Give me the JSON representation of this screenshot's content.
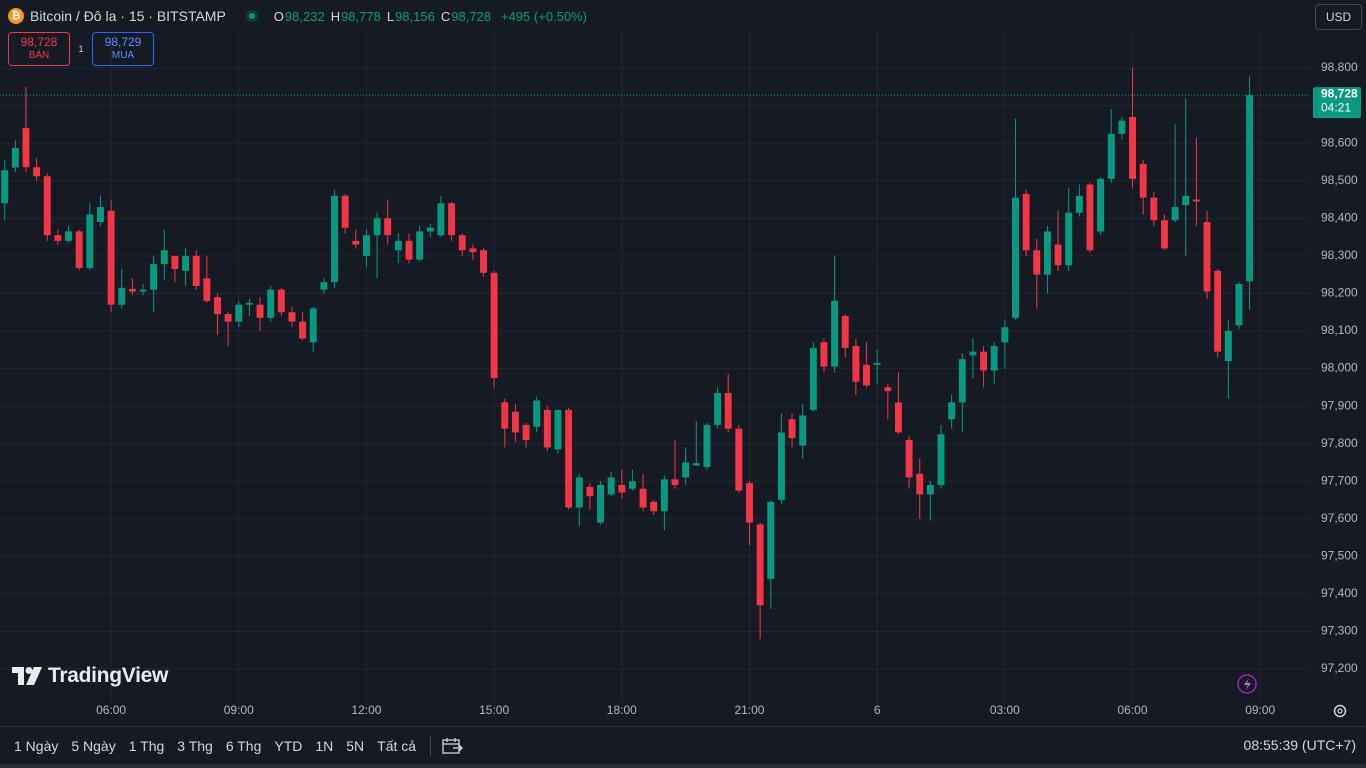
{
  "header": {
    "symbol": "Bitcoin / Đô la · 15 · BITSTAMP",
    "ohlc": [
      {
        "key": "O",
        "value": "98,232"
      },
      {
        "key": "H",
        "value": "98,778"
      },
      {
        "key": "L",
        "value": "98,156"
      },
      {
        "key": "C",
        "value": "98,728"
      }
    ],
    "change": "+495 (+0.50%)",
    "currency": "USD"
  },
  "trade": {
    "sell_price": "98,728",
    "sell_label": "BÁN",
    "spread": "1",
    "buy_price": "98,729",
    "buy_label": "MUA"
  },
  "chart_data": {
    "type": "candlestick",
    "up_color": "#089981",
    "down_color": "#f23645",
    "grid": true,
    "xlim": [
      3.39,
      34.17
    ],
    "ylim": [
      97051,
      98896
    ],
    "xticks": [
      {
        "value": 6,
        "label": "06:00"
      },
      {
        "value": 9,
        "label": "09:00"
      },
      {
        "value": 12,
        "label": "12:00"
      },
      {
        "value": 15,
        "label": "15:00"
      },
      {
        "value": 18,
        "label": "18:00"
      },
      {
        "value": 21,
        "label": "21:00"
      },
      {
        "value": 24,
        "label": "6"
      },
      {
        "value": 27,
        "label": "03:00"
      },
      {
        "value": 30,
        "label": "06:00"
      },
      {
        "value": 33,
        "label": "09:00"
      }
    ],
    "yticks": [
      {
        "value": 97200,
        "label": "97,200"
      },
      {
        "value": 97300,
        "label": "97,300"
      },
      {
        "value": 97400,
        "label": "97,400"
      },
      {
        "value": 97500,
        "label": "97,500"
      },
      {
        "value": 97600,
        "label": "97,600"
      },
      {
        "value": 97700,
        "label": "97,700"
      },
      {
        "value": 97800,
        "label": "97,800"
      },
      {
        "value": 97900,
        "label": "97,900"
      },
      {
        "value": 98000,
        "label": "98,000"
      },
      {
        "value": 98100,
        "label": "98,100"
      },
      {
        "value": 98200,
        "label": "98,200"
      },
      {
        "value": 98300,
        "label": "98,300"
      },
      {
        "value": 98400,
        "label": "98,400"
      },
      {
        "value": 98500,
        "label": "98,500"
      },
      {
        "value": 98600,
        "label": "98,600"
      },
      {
        "value": 98700,
        "label": "98,700"
      },
      {
        "value": 98800,
        "label": "98,800"
      }
    ],
    "x": [
      3.5,
      3.75,
      4,
      4.25,
      4.5,
      4.75,
      5,
      5.25,
      5.5,
      5.75,
      6,
      6.25,
      6.5,
      6.75,
      7,
      7.25,
      7.5,
      7.75,
      8,
      8.25,
      8.5,
      8.75,
      9,
      9.25,
      9.5,
      9.75,
      10,
      10.25,
      10.5,
      10.75,
      11,
      11.25,
      11.5,
      11.75,
      12,
      12.25,
      12.5,
      12.75,
      13,
      13.25,
      13.5,
      13.75,
      14,
      14.25,
      14.5,
      14.75,
      15,
      15.25,
      15.5,
      15.75,
      16,
      16.25,
      16.5,
      16.75,
      17,
      17.25,
      17.5,
      17.75,
      18,
      18.25,
      18.5,
      18.75,
      19,
      19.25,
      19.5,
      19.75,
      20,
      20.25,
      20.5,
      20.75,
      21,
      21.25,
      21.5,
      21.75,
      22,
      22.25,
      22.5,
      22.75,
      23,
      23.25,
      23.5,
      23.75,
      24,
      24.25,
      24.5,
      24.75,
      25,
      25.25,
      25.5,
      25.75,
      26,
      26.25,
      26.5,
      26.75,
      27,
      27.25,
      27.5,
      27.75,
      28,
      28.25,
      28.5,
      28.75,
      29,
      29.25,
      29.5,
      29.75,
      30,
      30.25,
      30.5,
      30.75,
      31,
      31.25,
      31.5,
      31.75,
      32,
      32.25,
      32.5,
      32.75
    ],
    "open": [
      98440,
      98535,
      98640,
      98536,
      98512,
      98355,
      98340,
      98365,
      98268,
      98390,
      98420,
      98170,
      98212,
      98205,
      98210,
      98278,
      98300,
      98260,
      98300,
      98240,
      98190,
      98145,
      98125,
      98170,
      98170,
      98135,
      98210,
      98150,
      98125,
      98070,
      98210,
      98230,
      98460,
      98340,
      98300,
      98355,
      98400,
      98315,
      98340,
      98290,
      98365,
      98355,
      98440,
      98355,
      98320,
      98315,
      98255,
      97910,
      97885,
      97850,
      97845,
      97890,
      97785,
      97890,
      97630,
      97685,
      97590,
      97665,
      97690,
      97680,
      97680,
      97645,
      97620,
      97705,
      97710,
      97742,
      97738,
      97850,
      97935,
      97840,
      97695,
      97585,
      97440,
      97650,
      97865,
      97795,
      97890,
      98070,
      98005,
      98140,
      98060,
      98010,
      98010,
      97950,
      97910,
      97810,
      97720,
      97665,
      97690,
      97865,
      97910,
      98035,
      98045,
      97995,
      98070,
      98135,
      98465,
      98315,
      98250,
      98330,
      98275,
      98415,
      98490,
      98365,
      98505,
      98625,
      98670,
      98545,
      98455,
      98395,
      98395,
      98435,
      98450,
      98390,
      98260,
      98020,
      98115,
      98232
    ],
    "high": [
      98555,
      98608,
      98750,
      98560,
      98520,
      98370,
      98380,
      98370,
      98440,
      98460,
      98450,
      98265,
      98240,
      98225,
      98300,
      98370,
      98300,
      98320,
      98315,
      98300,
      98200,
      98150,
      98180,
      98185,
      98190,
      98220,
      98215,
      98165,
      98150,
      98165,
      98240,
      98475,
      98465,
      98370,
      98370,
      98415,
      98450,
      98360,
      98360,
      98380,
      98385,
      98460,
      98445,
      98360,
      98330,
      98320,
      98260,
      97920,
      97905,
      97855,
      97925,
      97900,
      97890,
      97895,
      97720,
      97695,
      97700,
      97725,
      97730,
      97730,
      97720,
      97650,
      97715,
      97810,
      97790,
      97860,
      97855,
      97950,
      97985,
      97850,
      97700,
      97590,
      97650,
      97880,
      97880,
      97905,
      98070,
      98080,
      98300,
      98145,
      98080,
      98070,
      98050,
      97960,
      97990,
      97820,
      97760,
      97700,
      97850,
      97930,
      98040,
      98080,
      98060,
      98070,
      98130,
      98665,
      98475,
      98345,
      98380,
      98420,
      98480,
      98490,
      98495,
      98510,
      98690,
      98670,
      98800,
      98555,
      98470,
      98410,
      98650,
      98720,
      98615,
      98420,
      98265,
      98130,
      98230,
      98778
    ],
    "low": [
      98395,
      98523,
      98523,
      98500,
      98340,
      98330,
      98335,
      98262,
      98262,
      98380,
      98150,
      98160,
      98195,
      98195,
      98150,
      98235,
      98230,
      98220,
      98210,
      98175,
      98090,
      98060,
      98110,
      98140,
      98100,
      98125,
      98140,
      98110,
      98075,
      98045,
      98200,
      98215,
      98360,
      98320,
      98270,
      98240,
      98330,
      98280,
      98280,
      98285,
      98350,
      98350,
      98340,
      98300,
      98290,
      98245,
      97950,
      97790,
      97805,
      97790,
      97830,
      97780,
      97775,
      97625,
      97580,
      97625,
      97585,
      97660,
      97655,
      97675,
      97620,
      97610,
      97570,
      97680,
      97690,
      97740,
      97730,
      97840,
      97830,
      97670,
      97530,
      97280,
      97360,
      97640,
      97790,
      97760,
      97885,
      97990,
      97990,
      98030,
      97930,
      97950,
      97960,
      97865,
      97825,
      97680,
      97600,
      97595,
      97680,
      97840,
      97830,
      97975,
      97950,
      97960,
      98000,
      98130,
      98300,
      98160,
      98200,
      98260,
      98260,
      98405,
      98310,
      98355,
      98495,
      98610,
      98480,
      98410,
      98380,
      98315,
      98390,
      98300,
      98380,
      98185,
      98030,
      97920,
      98105,
      98156
    ],
    "close": [
      98528,
      98587,
      98536,
      98512,
      98355,
      98340,
      98365,
      98268,
      98410,
      98430,
      98170,
      98215,
      98205,
      98210,
      98278,
      98315,
      98265,
      98300,
      98220,
      98180,
      98145,
      98125,
      98170,
      98175,
      98135,
      98210,
      98150,
      98125,
      98080,
      98160,
      98230,
      98460,
      98375,
      98330,
      98355,
      98400,
      98355,
      98340,
      98290,
      98365,
      98375,
      98440,
      98355,
      98315,
      98310,
      98255,
      97975,
      97840,
      97830,
      97810,
      97915,
      97790,
      97890,
      97630,
      97710,
      97660,
      97690,
      97710,
      97670,
      97700,
      97630,
      97620,
      97705,
      97690,
      97750,
      97748,
      97850,
      97935,
      97840,
      97675,
      97590,
      97370,
      97645,
      97830,
      97815,
      97875,
      98055,
      98005,
      98180,
      98055,
      97965,
      97955,
      98015,
      97940,
      97830,
      97710,
      97665,
      97690,
      97825,
      97910,
      98025,
      98045,
      97995,
      98060,
      98110,
      98455,
      98315,
      98250,
      98365,
      98275,
      98415,
      98460,
      98315,
      98505,
      98625,
      98660,
      98505,
      98455,
      98395,
      98320,
      98430,
      98460,
      98445,
      98205,
      98045,
      98100,
      98225,
      98728
    ],
    "price_tag": {
      "value": 98728,
      "label": "98,728",
      "countdown": "04:21"
    }
  },
  "watermark": "TradingView",
  "toolbar": {
    "ranges": [
      "1 Ngày",
      "5 Ngày",
      "1 Thg",
      "3 Thg",
      "6 Thg",
      "YTD",
      "1N",
      "5N",
      "Tất cả"
    ],
    "clock": "08:55:39 (UTC+7)"
  }
}
